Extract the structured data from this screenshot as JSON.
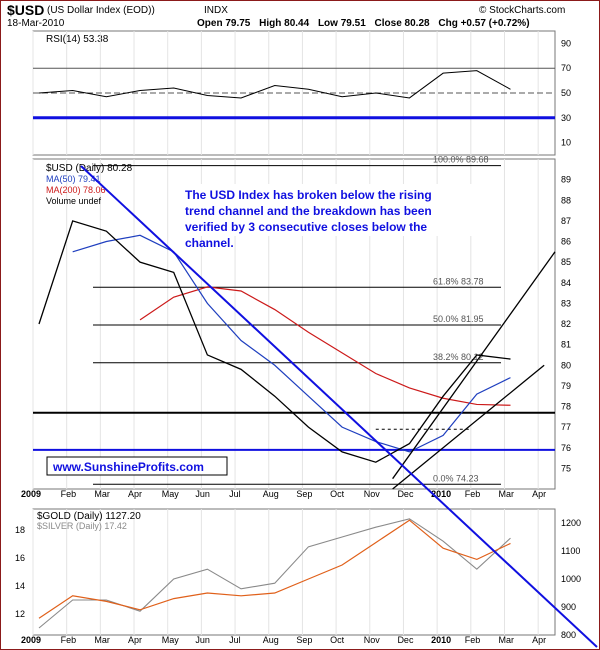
{
  "header": {
    "symbol": "$USD",
    "name": "(US Dollar Index (EOD))",
    "exchange": "INDX",
    "brand": "© StockCharts.com",
    "date": "18-Mar-2010",
    "open": "Open 79.75",
    "high": "High 80.44",
    "low": "Low 79.51",
    "close": "Close 80.28",
    "change": "Chg +0.57 (+0.72%)"
  },
  "rsi_label": "RSI(14) 53.38",
  "price_legend": {
    "main": "$USD (Daily) 80.28",
    "ma50": "MA(50) 79.41",
    "ma200": "MA(200) 78.06",
    "volume": "Volume undef"
  },
  "lower_legend": {
    "gold": "$GOLD (Daily) 1127.20",
    "silver": "$SILVER (Daily) 17.42"
  },
  "annotation": "The USD Index has broken below the rising trend channel and the breakdown has been verified by 3 consecutive closes below the channel.",
  "website": "www.SunshineProfits.com",
  "fib_labels": {
    "f100": "100.0% 89.68",
    "f618": "61.8% 83.78",
    "f50": "50.0% 81.95",
    "f382": "38.2% 80.12",
    "f0": "0.0% 74.23"
  },
  "colors": {
    "usd": "#000000",
    "ma50": "#1f3fbf",
    "ma200": "#cc1a1a",
    "gold": "#e0601a",
    "silver": "#8a8a8a",
    "trend": "#1010e0",
    "annotation": "#1010e0",
    "frame": "#8b1a1a"
  },
  "chart_data": [
    {
      "type": "line",
      "panel": "RSI",
      "title": "RSI(14) 53.38",
      "ylim": [
        0,
        100
      ],
      "y_ticks": [
        10,
        30,
        50,
        70,
        90
      ],
      "x": [
        "Jan",
        "Feb",
        "Mar",
        "Apr",
        "May",
        "Jun",
        "Jul",
        "Aug",
        "Sep",
        "Oct",
        "Nov",
        "Dec",
        "2010",
        "Feb",
        "Mar"
      ],
      "values": [
        50,
        52,
        47,
        52,
        54,
        48,
        46,
        56,
        53,
        47,
        50,
        46,
        66,
        68,
        53
      ],
      "reference_lines": [
        30,
        50,
        70
      ]
    },
    {
      "type": "line",
      "panel": "Price",
      "title": "$USD (Daily) 80.28",
      "ylim": [
        74,
        90
      ],
      "y_ticks": [
        75,
        76,
        77,
        78,
        79,
        80,
        81,
        82,
        83,
        84,
        85,
        86,
        87,
        88,
        89
      ],
      "x_ticks": [
        "2009",
        "Feb",
        "Mar",
        "Apr",
        "May",
        "Jun",
        "Jul",
        "Aug",
        "Sep",
        "Oct",
        "Nov",
        "Dec",
        "2010",
        "Feb",
        "Mar",
        "Apr"
      ],
      "x": [
        "Jan",
        "Feb",
        "Mar",
        "Apr",
        "May",
        "Jun",
        "Jul",
        "Aug",
        "Sep",
        "Oct",
        "Nov",
        "Dec",
        "2010",
        "Feb",
        "Mar"
      ],
      "series": [
        {
          "name": "$USD (Daily)",
          "values": [
            82.0,
            87.0,
            86.5,
            85.0,
            84.5,
            80.5,
            79.8,
            78.5,
            77.0,
            75.8,
            75.3,
            76.2,
            78.5,
            80.5,
            80.3
          ]
        },
        {
          "name": "MA(50)",
          "values": [
            null,
            85.5,
            86.0,
            86.3,
            85.5,
            83.0,
            81.2,
            80.0,
            78.5,
            77.0,
            76.3,
            75.8,
            76.6,
            78.6,
            79.4
          ]
        },
        {
          "name": "MA(200)",
          "values": [
            null,
            null,
            null,
            82.2,
            83.3,
            83.8,
            83.6,
            82.7,
            81.6,
            80.6,
            79.6,
            78.9,
            78.4,
            78.1,
            78.06
          ]
        }
      ],
      "fibonacci": [
        {
          "label": "100.0% 89.68",
          "value": 89.68
        },
        {
          "label": "61.8% 83.78",
          "value": 83.78
        },
        {
          "label": "50.0% 81.95",
          "value": 81.95
        },
        {
          "label": "38.2% 80.12",
          "value": 80.12
        },
        {
          "label": "0.0% 74.23",
          "value": 74.23
        }
      ],
      "horizontal_lines": [
        77.7,
        75.9
      ]
    },
    {
      "type": "line",
      "panel": "Gold/Silver",
      "title": "$GOLD (Daily) 1127.20",
      "y_ticks_left": [
        12,
        14,
        16,
        18
      ],
      "y_ticks_right": [
        800,
        900,
        1000,
        1100,
        1200
      ],
      "x_ticks": [
        "2009",
        "Feb",
        "Mar",
        "Apr",
        "May",
        "Jun",
        "Jul",
        "Aug",
        "Sep",
        "Oct",
        "Nov",
        "Dec",
        "2010",
        "Feb",
        "Mar",
        "Apr"
      ],
      "x": [
        "Jan",
        "Feb",
        "Mar",
        "Apr",
        "May",
        "Jun",
        "Jul",
        "Aug",
        "Sep",
        "Oct",
        "Nov",
        "Dec",
        "2010",
        "Feb",
        "Mar"
      ],
      "series": [
        {
          "name": "$GOLD (Daily)",
          "values": [
            860,
            940,
            920,
            890,
            930,
            950,
            940,
            950,
            1000,
            1050,
            1130,
            1210,
            1110,
            1070,
            1127
          ]
        },
        {
          "name": "$SILVER (Daily)",
          "values": [
            11.0,
            13.0,
            13.0,
            12.2,
            14.5,
            15.2,
            13.8,
            14.2,
            16.8,
            17.5,
            18.2,
            18.8,
            17.2,
            15.2,
            17.42
          ]
        }
      ]
    }
  ]
}
